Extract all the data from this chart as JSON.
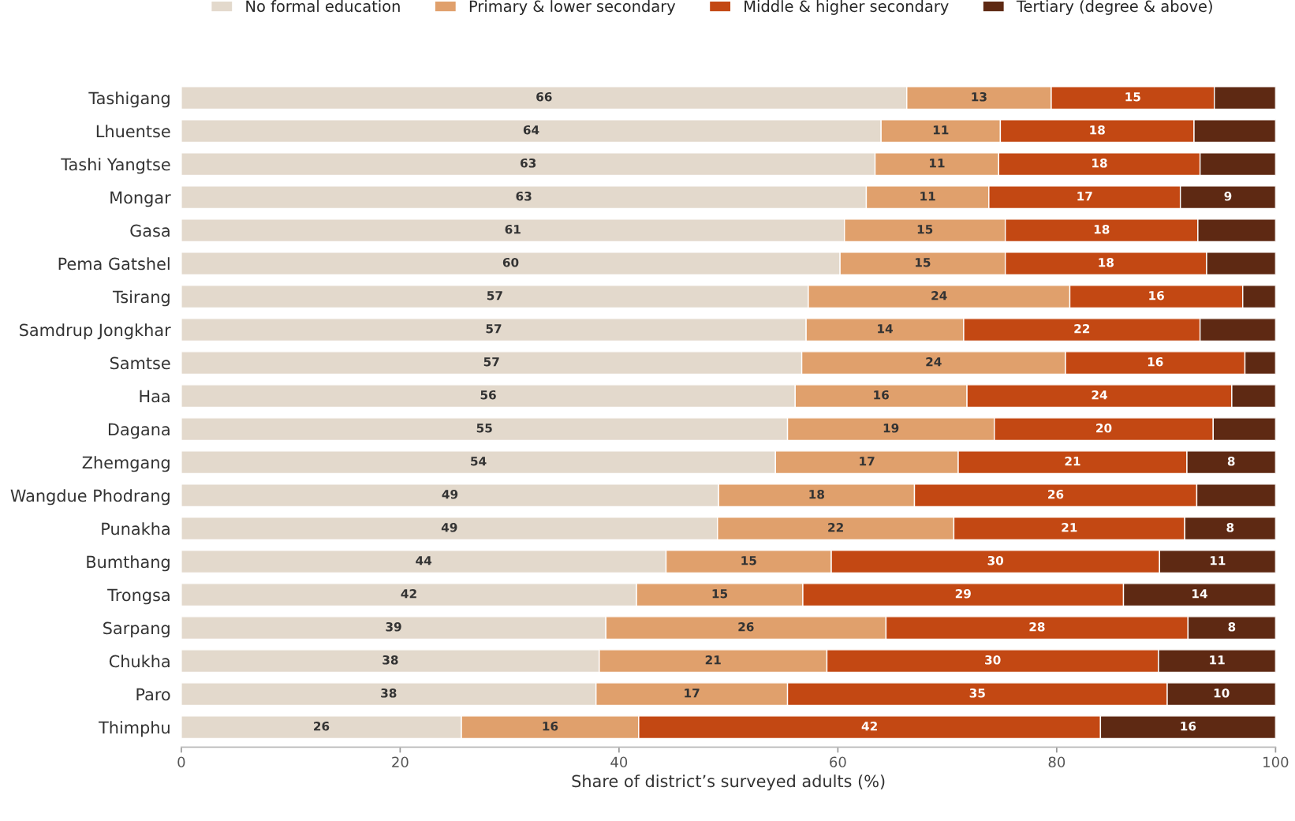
{
  "chart_data": {
    "type": "bar",
    "orientation": "horizontal",
    "stacked": true,
    "xlabel": "Share of district’s surveyed adults (%)",
    "categories": [
      "Tashigang",
      "Lhuentse",
      "Tashi Yangtse",
      "Mongar",
      "Gasa",
      "Pema Gatshel",
      "Tsirang",
      "Samdrup Jongkhar",
      "Samtse",
      "Haa",
      "Dagana",
      "Zhemgang",
      "Wangdue Phodrang",
      "Punakha",
      "Bumthang",
      "Trongsa",
      "Sarpang",
      "Chukha",
      "Paro",
      "Thimphu"
    ],
    "series": [
      {
        "name": "No formal education",
        "color": "#e3d9cc",
        "values": [
          66.3,
          63.95,
          63.4,
          62.6,
          60.6,
          60.2,
          57.3,
          57.1,
          56.7,
          56.1,
          55.4,
          54.3,
          49.1,
          49.0,
          44.3,
          41.6,
          38.8,
          38.2,
          37.9,
          25.6
        ],
        "value_labels": [
          "66",
          "64",
          "63",
          "63",
          "61",
          "60",
          "57",
          "57",
          "57",
          "56",
          "55",
          "54",
          "49",
          "49",
          "44",
          "42",
          "39",
          "38",
          "38",
          "26"
        ]
      },
      {
        "name": "Primary & lower secondary",
        "color": "#e0a06c",
        "values": [
          13.2,
          10.9,
          11.3,
          11.2,
          14.7,
          15.1,
          23.9,
          14.4,
          24.1,
          15.7,
          18.9,
          16.7,
          17.9,
          21.6,
          15.1,
          15.2,
          25.6,
          20.8,
          17.5,
          16.2
        ],
        "value_labels": [
          "13",
          "11",
          "11",
          "11",
          "15",
          "15",
          "24",
          "14",
          "24",
          "16",
          "19",
          "17",
          "18",
          "22",
          "15",
          "15",
          "26",
          "21",
          "17",
          "16"
        ]
      },
      {
        "name": "Middle & higher secondary",
        "color": "#c34813",
        "values": [
          14.9,
          17.7,
          18.4,
          17.5,
          17.6,
          18.4,
          15.8,
          21.6,
          16.4,
          24.2,
          20.0,
          20.9,
          25.8,
          21.1,
          30.0,
          29.3,
          27.6,
          30.3,
          34.7,
          42.2
        ],
        "value_labels": [
          "15",
          "18",
          "18",
          "17",
          "18",
          "18",
          "16",
          "22",
          "16",
          "24",
          "20",
          "21",
          "26",
          "21",
          "30",
          "29",
          "28",
          "30",
          "35",
          "42"
        ]
      },
      {
        "name": "Tertiary (degree & above)",
        "color": "#5e2913",
        "values": [
          5.6,
          7.45,
          6.9,
          8.7,
          7.1,
          6.3,
          3.0,
          6.9,
          2.8,
          4.0,
          5.7,
          8.1,
          7.2,
          8.3,
          10.6,
          13.9,
          8.0,
          10.7,
          9.9,
          16.0
        ],
        "value_labels": [
          null,
          null,
          null,
          "9",
          null,
          null,
          null,
          null,
          null,
          null,
          null,
          "8",
          null,
          "8",
          "11",
          "14",
          "8",
          "11",
          "10",
          "16"
        ]
      }
    ],
    "xlim": [
      0,
      100
    ],
    "xticks": [
      0,
      20,
      40,
      60,
      80,
      100
    ],
    "grid": false,
    "legend": "top"
  }
}
